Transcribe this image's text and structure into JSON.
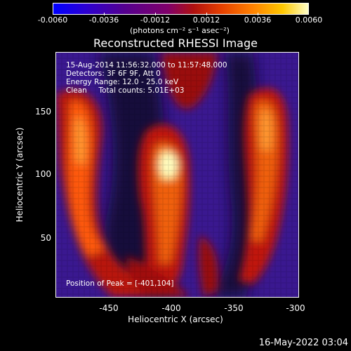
{
  "colorbar": {
    "ticks": [
      "-0.0060",
      "-0.0036",
      "-0.0012",
      "0.0012",
      "0.0036",
      "0.0060"
    ],
    "units": "(photons cm⁻² s⁻¹ asec⁻²)"
  },
  "title": "Reconstructed RHESSI Image",
  "info": {
    "line1": "15-Aug-2014 11:56:32.000 to 11:57:48.000",
    "line2": "Detectors: 3F 6F 9F, Att 0",
    "line3": "Energy Range: 12.0 - 25.0 keV",
    "line4": "Clean     Total counts: 5.01E+03"
  },
  "peak": "Position of Peak = [-401,104]",
  "axes": {
    "xlabel": "Heliocentric X (arcsec)",
    "ylabel": "Heliocentric Y (arcsec)",
    "xticks": [
      "-450",
      "-400",
      "-350",
      "-300"
    ],
    "yticks": [
      "150",
      "100",
      "50"
    ]
  },
  "timestamp": "16-May-2022 03:04",
  "colors": {
    "background": "#000000",
    "foreground": "#ffffff",
    "purple": "#4a1da0",
    "red": "#c01808",
    "orange": "#f06010",
    "peak": "#ffffc0"
  }
}
